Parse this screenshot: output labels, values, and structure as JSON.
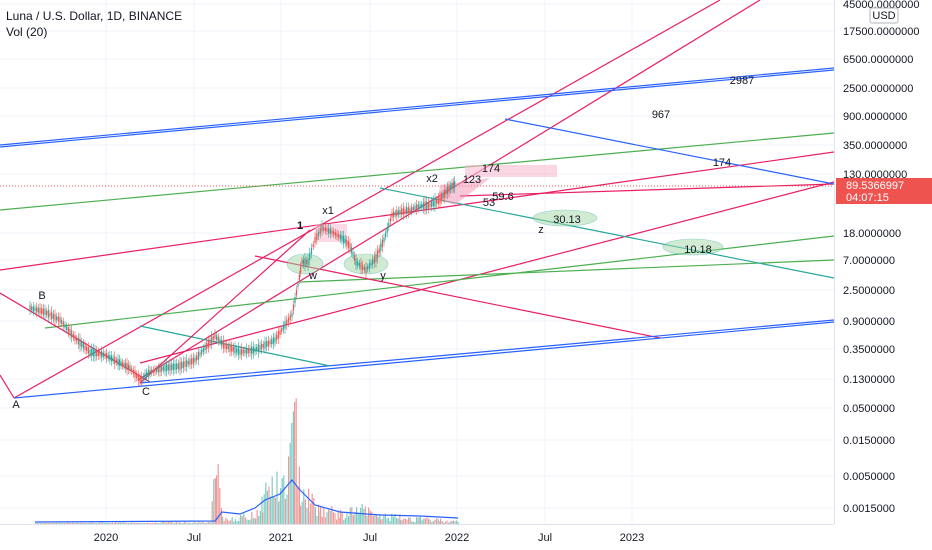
{
  "header": {
    "title": "Luna / U.S. Dollar, 1D, BINANCE",
    "indicator": "Vol (20)",
    "currency": "USD"
  },
  "colors": {
    "pink": "#e91e63",
    "blue": "#2962ff",
    "green": "#4caf50",
    "teal": "#26a69a",
    "price_tag": "#ef5350",
    "up_candle": "#26a69a",
    "down_candle": "#ef5350"
  },
  "chart_data": {
    "type": "candlestick",
    "title": "Luna / U.S. Dollar, 1D, BINANCE",
    "yscale": "log",
    "y_ticks": [
      "45000.0000000",
      "17500.0000000",
      "6500.0000000",
      "2500.0000000",
      "900.0000000",
      "350.0000000",
      "130.0000000",
      "18.0000000",
      "7.0000000",
      "2.5000000",
      "0.9000000",
      "0.3500000",
      "0.1300000",
      "0.0500000",
      "0.0150000",
      "0.0050000",
      "0.0015000"
    ],
    "x_ticks": [
      "2020",
      "Jul",
      "2021",
      "Jul",
      "2022",
      "Jul",
      "2023"
    ],
    "last_price": "89.5366997",
    "countdown": "04:07:15",
    "wave_labels": [
      "A",
      "B",
      "C",
      "1",
      "x1",
      "w",
      "y",
      "x2",
      "z"
    ],
    "target_labels": [
      "2987",
      "967",
      "174",
      "174",
      "123",
      "59.6",
      "53",
      "30.13",
      "10.18"
    ]
  }
}
